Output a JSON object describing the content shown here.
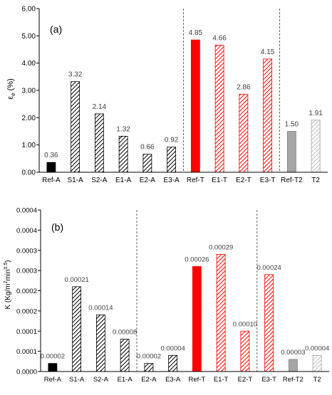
{
  "chart_data": [
    {
      "type": "bar",
      "panel_label": "(a)",
      "ylabel_main": "ε",
      "ylabel_sub": "e",
      "ylabel_unit": " (%)",
      "ylim": [
        0,
        6
      ],
      "yticks": [
        "0.00",
        "1.00",
        "2.00",
        "3.00",
        "4.00",
        "5.00",
        "6.00"
      ],
      "categories": [
        "Ref-A",
        "S1-A",
        "S2-A",
        "E1-A",
        "E2-A",
        "E3-A",
        "Ref-T",
        "E1-T",
        "E2-T",
        "E3-T",
        "Ref-T2",
        "T2"
      ],
      "values": [
        0.36,
        3.32,
        2.14,
        1.32,
        0.66,
        0.92,
        4.85,
        4.66,
        2.86,
        4.15,
        1.5,
        1.91
      ],
      "data_labels": [
        "0.36",
        "3.32",
        "2.14",
        "1.32",
        "0.66",
        "0.92",
        "4.85",
        "4.66",
        "2.86",
        "4.15",
        "1.50",
        "1.91"
      ],
      "fills": [
        "black",
        "hatch-black",
        "hatch-black",
        "hatch-black",
        "hatch-black",
        "hatch-black",
        "red",
        "hatch-red",
        "hatch-red",
        "hatch-red",
        "gray",
        "hatch-gray"
      ],
      "group_separators_after": [
        5,
        9
      ],
      "grid": false,
      "colors": {
        "black": "#000000",
        "red": "#ff0000",
        "gray": "#a6a6a6",
        "hatch_gray": "#bfbfbf"
      }
    },
    {
      "type": "bar",
      "panel_label": "(b)",
      "ylabel_main": "K (Kg/m",
      "ylabel_sup1": "2",
      "ylabel_mid": "min",
      "ylabel_sup2": "0.5",
      "ylabel_end": ")",
      "ylim": [
        0,
        0.0004
      ],
      "ytick_values": [
        0,
        5e-05,
        0.0001,
        0.00015,
        0.0002,
        0.00025,
        0.0003,
        0.00035,
        0.0004
      ],
      "yticks": [
        "0.0000",
        "0.0001",
        "0.0001",
        "0.0002",
        "0.0002",
        "0.0003",
        "0.0003",
        "0.0004",
        "0.0004"
      ],
      "categories": [
        "Ref-A",
        "S1-A",
        "S2-A",
        "E1-A",
        "E2-A",
        "E3-A",
        "Ref-T",
        "E1-T",
        "E2-T",
        "E3-T",
        "Ref-T2",
        "T2"
      ],
      "values": [
        2e-05,
        0.00021,
        0.00014,
        8e-05,
        2e-05,
        4e-05,
        0.00026,
        0.00029,
        0.0001,
        0.00024,
        3e-05,
        4e-05
      ],
      "data_labels": [
        "0.00002",
        "0.00021",
        "0.00014",
        "0.00008",
        "0.00002",
        "0.00004",
        "0.00026",
        "0.00029",
        "0.00010",
        "0.00024",
        "0.00003",
        "0.00004"
      ],
      "fills": [
        "black",
        "hatch-black",
        "hatch-black",
        "hatch-black",
        "hatch-black",
        "hatch-black",
        "red",
        "hatch-red",
        "hatch-red",
        "hatch-red",
        "gray",
        "hatch-gray"
      ],
      "group_separators_after": [
        3,
        8
      ],
      "grid": false,
      "colors": {
        "black": "#000000",
        "red": "#ff0000",
        "gray": "#a6a6a6",
        "hatch_gray": "#bfbfbf"
      }
    }
  ]
}
